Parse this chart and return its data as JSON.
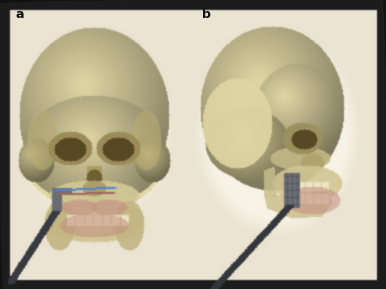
{
  "fig_width": 3.86,
  "fig_height": 2.89,
  "dpi": 100,
  "bg_dark": [
    28,
    28,
    28
  ],
  "bg_panel": [
    232,
    224,
    200
  ],
  "skull_base": [
    220,
    210,
    160
  ],
  "skull_highlight": [
    245,
    240,
    210
  ],
  "skull_shadow": [
    180,
    165,
    110
  ],
  "tissue_pink": [
    210,
    160,
    150
  ],
  "metal_gray": [
    100,
    100,
    105
  ],
  "label_a": "a",
  "label_b": "b",
  "side_bg": [
    248,
    244,
    230
  ]
}
